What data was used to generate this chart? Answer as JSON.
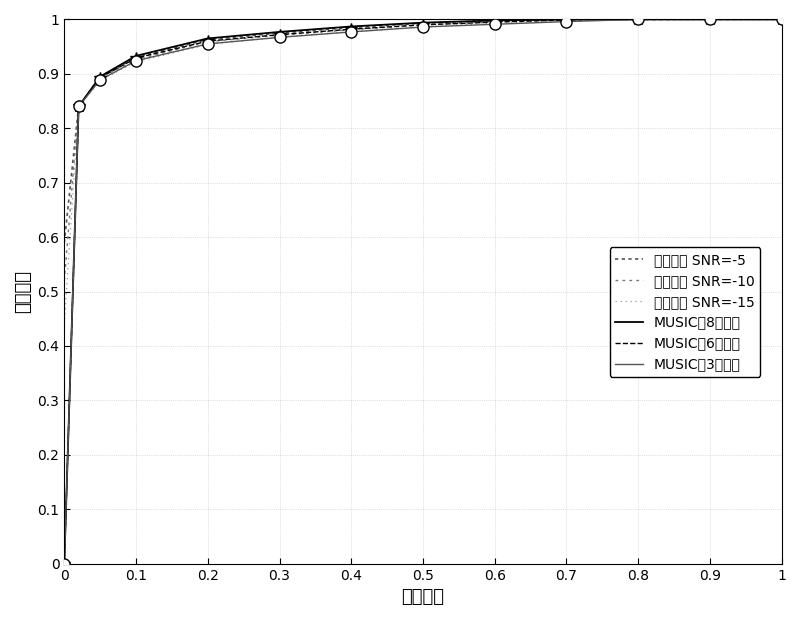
{
  "xlabel": "虚警概率",
  "ylabel": "检测概率",
  "xlim": [
    0,
    1
  ],
  "ylim": [
    0,
    1
  ],
  "xticks": [
    0,
    0.1,
    0.2,
    0.3,
    0.4,
    0.5,
    0.6,
    0.7,
    0.8,
    0.9,
    1
  ],
  "yticks": [
    0,
    0.1,
    0.2,
    0.3,
    0.4,
    0.5,
    0.6,
    0.7,
    0.8,
    0.9,
    1
  ],
  "legend_labels": [
    "能量算法 SNR=-5",
    "能量算法 SNR=-10",
    "能量算法 SNR=-15",
    "MUSIC（8阵元）",
    "MUSIC（6阵元）",
    "MUSIC（3阵元）"
  ],
  "pfa_common": [
    0,
    0.02,
    0.05,
    0.1,
    0.2,
    0.3,
    0.4,
    0.5,
    0.6,
    0.7,
    0.8,
    0.9,
    1.0
  ],
  "energy_snr5_y": [
    0.59,
    0.84,
    0.895,
    0.93,
    0.963,
    0.975,
    0.985,
    0.993,
    0.998,
    1.0,
    1.0,
    1.0,
    1.0
  ],
  "energy_snr10_y": [
    0.52,
    0.84,
    0.893,
    0.926,
    0.959,
    0.971,
    0.981,
    0.99,
    0.996,
    1.0,
    1.0,
    1.0,
    1.0
  ],
  "energy_snr15_y": [
    0.44,
    0.84,
    0.888,
    0.922,
    0.954,
    0.967,
    0.977,
    0.986,
    0.993,
    0.998,
    1.0,
    1.0,
    1.0
  ],
  "music8_x": [
    0,
    0.02,
    0.05,
    0.1,
    0.2,
    0.3,
    0.4,
    0.5,
    0.6,
    0.7,
    0.8,
    0.9,
    1.0
  ],
  "music8_y": [
    0,
    0.84,
    0.895,
    0.933,
    0.965,
    0.977,
    0.987,
    0.994,
    0.998,
    1.0,
    1.0,
    1.0,
    1.0
  ],
  "music6_x": [
    0,
    0.02,
    0.05,
    0.1,
    0.2,
    0.3,
    0.4,
    0.5,
    0.6,
    0.7,
    0.8,
    0.9,
    1.0
  ],
  "music6_y": [
    0,
    0.84,
    0.893,
    0.929,
    0.96,
    0.972,
    0.982,
    0.99,
    0.995,
    0.999,
    1.0,
    1.0,
    1.0
  ],
  "music3_x": [
    0,
    0.02,
    0.05,
    0.1,
    0.2,
    0.3,
    0.4,
    0.5,
    0.6,
    0.7,
    0.8,
    0.9,
    1.0
  ],
  "music3_y": [
    0,
    0.84,
    0.889,
    0.924,
    0.955,
    0.967,
    0.977,
    0.986,
    0.991,
    0.996,
    1.0,
    1.0,
    1.0
  ],
  "music6_marker_x": [
    0,
    0.02,
    0.05,
    0.1,
    0.2,
    0.3,
    0.4,
    0.5,
    0.6,
    0.7,
    0.8,
    0.9,
    1.0
  ],
  "music3_marker_x": [
    0,
    0.02,
    0.05,
    0.1,
    0.2,
    0.3,
    0.4,
    0.5,
    0.6,
    0.7,
    0.8,
    0.9,
    1.0
  ]
}
